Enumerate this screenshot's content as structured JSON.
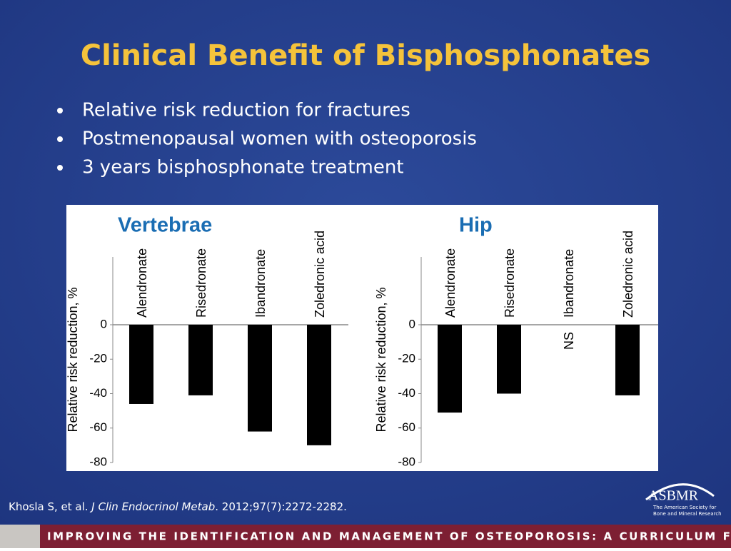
{
  "title": "Clinical Benefit of Bisphosphonates",
  "bullets": [
    "Relative risk reduction for fractures",
    "Postmenopausal women with osteoporosis",
    "3 years bisphosphonate treatment"
  ],
  "chart_data": [
    {
      "type": "bar",
      "title": "Vertebrae",
      "y_label": "Relative risk reduction, %",
      "categories": [
        "Alendronate",
        "Risedronate",
        "Ibandronate",
        "Zoledronic acid"
      ],
      "values": [
        -46,
        -41,
        -62,
        -70
      ],
      "color": "#000000",
      "ylim": [
        -80,
        0
      ],
      "yticks": [
        0,
        -20,
        -40,
        -60,
        -80
      ]
    },
    {
      "type": "bar",
      "title": "Hip",
      "y_label": "Relative risk reduction, %",
      "categories": [
        "Alendronate",
        "Risedronate",
        "Ibandronate",
        "Zoledronic acid"
      ],
      "values": [
        -51,
        -40,
        null,
        -41
      ],
      "annotations": [
        "NS"
      ],
      "color": "#000000",
      "ylim": [
        -80,
        0
      ],
      "yticks": [
        0,
        -20,
        -40,
        -60,
        -80
      ]
    }
  ],
  "citation": [
    "Khosla S, et al. ",
    "J Clin Endocrinol Metab",
    ". 2012;97(7):2272-2282."
  ],
  "logo": {
    "name": "ASBMR",
    "tagline": [
      "The American Society for",
      "Bone and Mineral Research"
    ]
  },
  "footer": "IMPROVING THE IDENTIFICATION AND MANAGEMENT OF OSTEOPOROSIS: A CURRICULUM FOR THE PCP"
}
